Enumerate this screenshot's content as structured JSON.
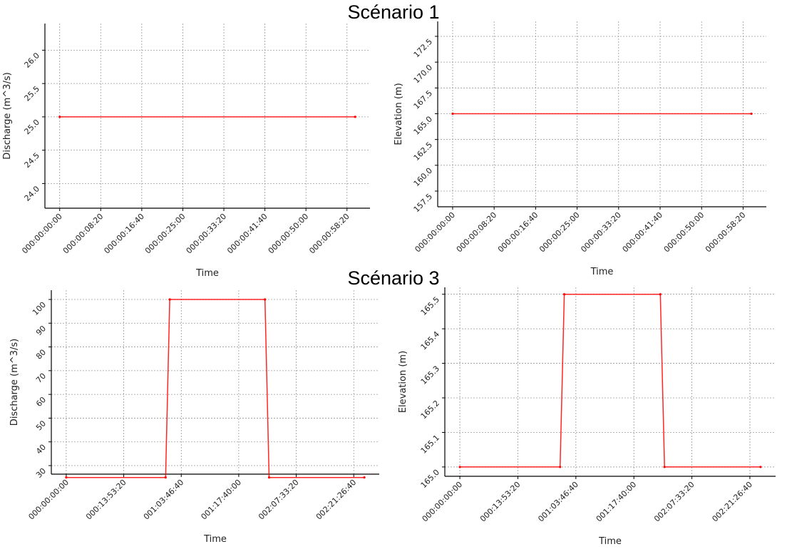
{
  "section_titles": [
    "Scénario 1",
    "Scénario 3"
  ],
  "line_color": "#ff0000",
  "grid_color": "#9a9a9a",
  "chart_data": [
    {
      "type": "line",
      "section": "Scénario 1",
      "xlabel": "Time",
      "ylabel": "Discharge (m^3/s)",
      "xticks": [
        "000:00:00:00",
        "000:00:08:20",
        "000:00:16:40",
        "000:00:25:00",
        "000:00:33:20",
        "000:00:41:40",
        "000:00:50:00",
        "000:00:58:20"
      ],
      "yticks": [
        "24.0",
        "24.5",
        "25.0",
        "25.5",
        "26.0"
      ],
      "ylim": [
        23.63,
        26.4
      ],
      "grid": true,
      "series": [
        {
          "x": [
            "000:00:00:00",
            "000:01:00:00"
          ],
          "y": [
            25,
            25
          ]
        }
      ]
    },
    {
      "type": "line",
      "section": "Scénario 1",
      "xlabel": "Time",
      "ylabel": "Elevation (m)",
      "xticks": [
        "000:00:00:00",
        "000:00:08:20",
        "000:00:16:40",
        "000:00:25:00",
        "000:00:33:20",
        "000:00:41:40",
        "000:00:50:00",
        "000:00:58:20"
      ],
      "yticks": [
        "157.5",
        "160.0",
        "162.5",
        "165.0",
        "167.5",
        "170.0",
        "172.5"
      ],
      "ylim": [
        155.98,
        173.95
      ],
      "grid": true,
      "series": [
        {
          "x": [
            "000:00:00:00",
            "000:01:00:00"
          ],
          "y": [
            165,
            165
          ]
        }
      ]
    },
    {
      "type": "line",
      "section": "Scénario 3",
      "xlabel": "Time",
      "ylabel": "Discharge (m^3/s)",
      "xticks": [
        "000:00:00:00",
        "000:13:53:20",
        "001:03:46:40",
        "001:17:40:00",
        "002:07:33:20",
        "002:21:26:40"
      ],
      "yticks": [
        "30",
        "40",
        "50",
        "60",
        "70",
        "80",
        "90",
        "100"
      ],
      "ylim": [
        26.4,
        103.9
      ],
      "grid": true,
      "series": [
        {
          "x": [
            "000:00:00:00",
            "001:00:00:00",
            "001:01:00:00",
            "002:00:00:00",
            "002:01:00:00",
            "003:00:00:00"
          ],
          "y": [
            25,
            25,
            100,
            100,
            25,
            25
          ]
        }
      ]
    },
    {
      "type": "line",
      "section": "Scénario 3",
      "xlabel": "Time",
      "ylabel": "Elevation (m)",
      "xticks": [
        "000:00:00:00",
        "000:13:53:20",
        "001:03:46:40",
        "001:17:40:00",
        "002:07:33:20",
        "002:21:26:40"
      ],
      "yticks": [
        "165.0",
        "165.1",
        "165.2",
        "165.3",
        "165.4",
        "165.5"
      ],
      "ylim": [
        164.973,
        165.52
      ],
      "grid": true,
      "series": [
        {
          "x": [
            "000:00:00:00",
            "001:00:00:00",
            "001:01:00:00",
            "002:00:00:00",
            "002:01:00:00",
            "003:00:00:00"
          ],
          "y": [
            165.0,
            165.0,
            165.5,
            165.5,
            165.0,
            165.0
          ]
        }
      ]
    }
  ]
}
